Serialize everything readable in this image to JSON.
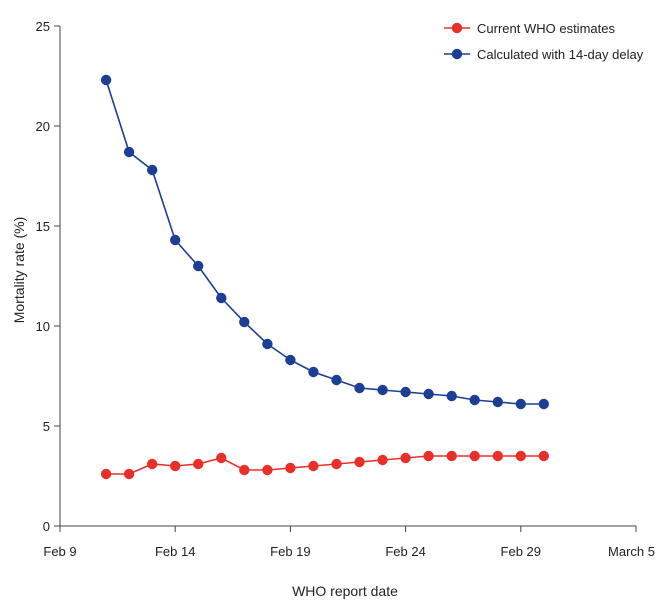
{
  "chart_data": {
    "type": "line",
    "title": "",
    "xlabel": "WHO report date",
    "ylabel": "Mortality rate (%)",
    "xlim": [
      "2020-02-09",
      "2020-03-05"
    ],
    "ylim": [
      0,
      25
    ],
    "grid": false,
    "legend_position": "top-right",
    "x_ticks": [
      {
        "date": "2020-02-09",
        "label": "Feb 9"
      },
      {
        "date": "2020-02-14",
        "label": "Feb 14"
      },
      {
        "date": "2020-02-19",
        "label": "Feb 19"
      },
      {
        "date": "2020-02-24",
        "label": "Feb 24"
      },
      {
        "date": "2020-02-29",
        "label": "Feb 29"
      },
      {
        "date": "2020-03-05",
        "label": "March 5"
      }
    ],
    "y_ticks": [
      {
        "value": 0,
        "label": "0"
      },
      {
        "value": 5,
        "label": "5"
      },
      {
        "value": 10,
        "label": "10"
      },
      {
        "value": 15,
        "label": "15"
      },
      {
        "value": 20,
        "label": "20"
      },
      {
        "value": 25,
        "label": "25"
      }
    ],
    "x": [
      "2020-02-11",
      "2020-02-12",
      "2020-02-13",
      "2020-02-14",
      "2020-02-15",
      "2020-02-16",
      "2020-02-17",
      "2020-02-18",
      "2020-02-19",
      "2020-02-20",
      "2020-02-21",
      "2020-02-22",
      "2020-02-23",
      "2020-02-24",
      "2020-02-25",
      "2020-02-26",
      "2020-02-27",
      "2020-02-28",
      "2020-02-29",
      "2020-03-01"
    ],
    "series": [
      {
        "name": "Current WHO estimates",
        "color": "#e8302a",
        "values": [
          2.6,
          2.6,
          3.1,
          3.0,
          3.1,
          3.4,
          2.8,
          2.8,
          2.9,
          3.0,
          3.1,
          3.2,
          3.3,
          3.4,
          3.5,
          3.5,
          3.5,
          3.5,
          3.5,
          3.5
        ]
      },
      {
        "name": "Calculated with 14-day delay",
        "color": "#1c3f94",
        "values": [
          22.3,
          18.7,
          17.8,
          14.3,
          13.0,
          11.4,
          10.2,
          9.1,
          8.3,
          7.7,
          7.3,
          6.9,
          6.8,
          6.7,
          6.6,
          6.5,
          6.3,
          6.2,
          6.1,
          6.1
        ]
      }
    ]
  }
}
